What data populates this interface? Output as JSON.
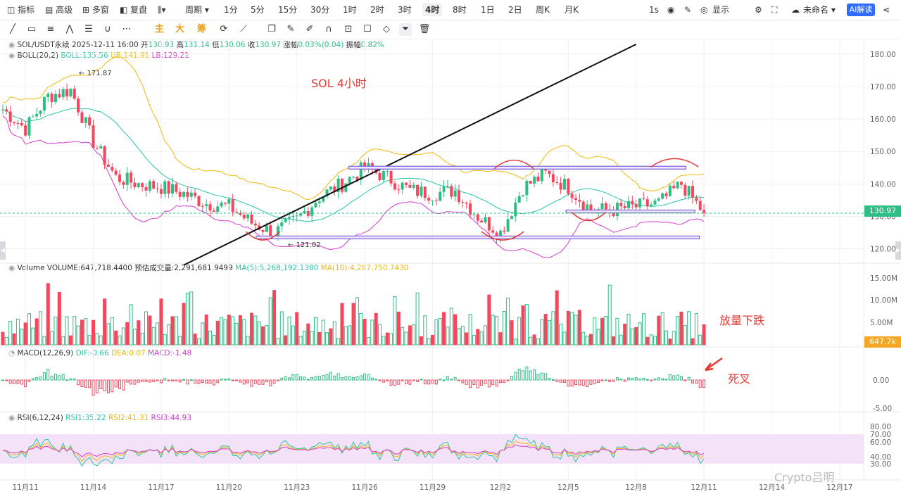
{
  "toolbar": {
    "items": [
      "指标",
      "高级",
      "多窗",
      "复盘",
      "",
      "周期",
      "1分",
      "5分",
      "15分",
      "30分",
      "1时",
      "2时",
      "3时",
      "4时",
      "8时",
      "1日",
      "2日",
      "周K",
      "月K"
    ],
    "right": {
      "interval": "1s",
      "display": "显示",
      "account": "未命名",
      "ai": "AI解读"
    }
  },
  "drawbar": {
    "cn": [
      "主",
      "大",
      "筹"
    ]
  },
  "legend": {
    "main": {
      "symbol": "SOL/USDT永续",
      "datetime": "2025-12-11 16:00",
      "open_label": "开",
      "open": "130.93",
      "high_label": "高",
      "high": "131.14",
      "low_label": "低",
      "low": "130.06",
      "close_label": "收",
      "close": "130.97",
      "chg_label": "涨幅",
      "chg": "0.03%(0.04)",
      "amp_label": "振幅",
      "amp": "0.82%"
    },
    "boll": {
      "name": "BOLL(20,2)",
      "boll": "BOLL:135.56",
      "ub": "UB:141.91",
      "lb": "LB:129.21"
    },
    "volume": {
      "name": "Volume",
      "volume": "VOLUME:647,718.4400",
      "est": "预估成交量:2,291,681.9499",
      "ma5": "MA(5):5,268,192.1380",
      "ma10": "MA(10):4,287,750.7430"
    },
    "macd": {
      "name": "MACD(12,26,9)",
      "dif": "DIF:-0.66",
      "dea": "DEA:0.07",
      "macd": "MACD:-1.48"
    },
    "rsi": {
      "name": "RSI(6,12,24)",
      "rsi1": "RSI1:35.22",
      "rsi2": "RSI2:41.31",
      "rsi3": "RSI3:44.93"
    }
  },
  "annotations": {
    "title": "SOL 4小时",
    "volume_note": "放量下跌",
    "macd_note": "死叉",
    "high_mark": "171.87",
    "low_mark": "121.02"
  },
  "axes": {
    "price_ticks": [
      "180.00",
      "170.00",
      "160.00",
      "150.00",
      "140.00",
      "130.00",
      "120.00"
    ],
    "volume_ticks": [
      "15.00M",
      "10.00M",
      "5.00M"
    ],
    "macd_ticks": [
      "0.00",
      "-5.00"
    ],
    "rsi_ticks": [
      "80.00",
      "70.00",
      "60.00",
      "40.00",
      "30.00"
    ],
    "dates": [
      "11月11",
      "11月14",
      "11月17",
      "11月20",
      "11月23",
      "11月26",
      "11月29",
      "12月2",
      "12月5",
      "12月8",
      "12月11",
      "12月14",
      "12月17"
    ],
    "current_price": "130.97",
    "current_volume": "647.7k"
  },
  "watermark": "Crypto吕明",
  "colors": {
    "up": "#2ebd85",
    "down": "#f6465d",
    "boll_mid": "#26c6a6",
    "boll_up": "#f0b90b",
    "boll_low": "#d63bcf",
    "box": "#7b5cd6",
    "annot": "#e53935"
  },
  "chart_data": {
    "type": "candlestick",
    "symbol": "SOL/USDT永续",
    "interval": "4h",
    "x_range": [
      "11月10",
      "12月18"
    ],
    "price_range": [
      116,
      183
    ],
    "points": [
      {
        "date": "11月10",
        "price": 163
      },
      {
        "date": "11月11",
        "price": 157
      },
      {
        "date": "11月12",
        "price": 167
      },
      {
        "date": "11月13",
        "price": 169
      },
      {
        "date": "11月14",
        "price": 153
      },
      {
        "date": "11月15",
        "price": 142
      },
      {
        "date": "11月16",
        "price": 140
      },
      {
        "date": "11月17",
        "price": 139
      },
      {
        "date": "11月18",
        "price": 137
      },
      {
        "date": "11月19",
        "price": 134
      },
      {
        "date": "11月20",
        "price": 133
      },
      {
        "date": "11月21",
        "price": 128
      },
      {
        "date": "11月22",
        "price": 125
      },
      {
        "date": "11月23",
        "price": 129
      },
      {
        "date": "11月24",
        "price": 136
      },
      {
        "date": "11月25",
        "price": 140
      },
      {
        "date": "11月26",
        "price": 145
      },
      {
        "date": "11月27",
        "price": 142
      },
      {
        "date": "11月28",
        "price": 138
      },
      {
        "date": "11月29",
        "price": 137
      },
      {
        "date": "11月30",
        "price": 138
      },
      {
        "date": "12月1",
        "price": 130
      },
      {
        "date": "12月2",
        "price": 125
      },
      {
        "date": "12月3",
        "price": 139
      },
      {
        "date": "12月4",
        "price": 143
      },
      {
        "date": "12月5",
        "price": 139
      },
      {
        "date": "12月6",
        "price": 132
      },
      {
        "date": "12月7",
        "price": 132
      },
      {
        "date": "12月8",
        "price": 133
      },
      {
        "date": "12月9",
        "price": 134
      },
      {
        "date": "12月10",
        "price": 140
      },
      {
        "date": "12月11",
        "price": 131
      }
    ],
    "high": 171.87,
    "low": 121.02,
    "last": 130.97,
    "levels": [
      {
        "price": 145
      },
      {
        "price": 131.5
      },
      {
        "price": 123.5
      }
    ],
    "trendline": [
      {
        "date": "11月18",
        "price": 115
      },
      {
        "date": "12月8",
        "price": 183
      }
    ]
  }
}
